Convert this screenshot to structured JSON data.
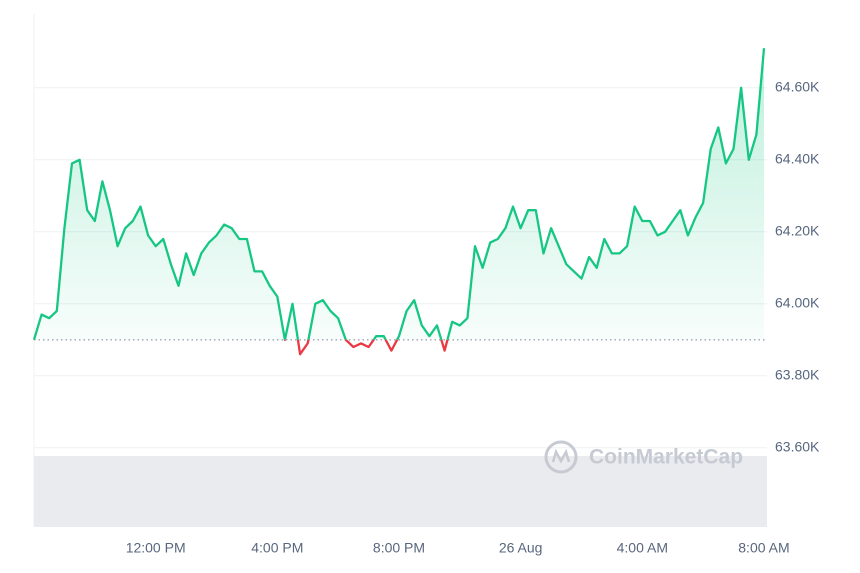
{
  "chart_data": {
    "type": "line",
    "watermark": "CoinMarketCap",
    "x": [
      8,
      8.25,
      8.5,
      8.75,
      9,
      9.25,
      9.5,
      9.75,
      10,
      10.25,
      10.5,
      10.75,
      11,
      11.25,
      11.5,
      11.75,
      12,
      12.25,
      12.5,
      12.75,
      13,
      13.25,
      13.5,
      13.75,
      14,
      14.25,
      14.5,
      14.75,
      15,
      15.25,
      15.5,
      15.75,
      16,
      16.25,
      16.5,
      16.75,
      17,
      17.25,
      17.5,
      17.75,
      18,
      18.25,
      18.5,
      18.75,
      19,
      19.25,
      19.5,
      19.75,
      20,
      20.25,
      20.5,
      20.75,
      21,
      21.25,
      21.5,
      21.75,
      22,
      22.25,
      22.5,
      22.75,
      23,
      23.25,
      23.5,
      23.75,
      24,
      24.25,
      24.5,
      24.75,
      25,
      25.25,
      25.5,
      25.75,
      26,
      26.25,
      26.5,
      26.75,
      27,
      27.25,
      27.5,
      27.75,
      28,
      28.25,
      28.5,
      28.75,
      29,
      29.25,
      29.5,
      29.75,
      30,
      30.25,
      30.5,
      30.75,
      31,
      31.25,
      31.5,
      31.75,
      32
    ],
    "series": [
      {
        "color": "#16c784",
        "below_color": "#ea3943",
        "values": [
          63900,
          63970,
          63960,
          63980,
          64210,
          64390,
          64400,
          64260,
          64230,
          64340,
          64260,
          64160,
          64210,
          64230,
          64270,
          64190,
          64160,
          64180,
          64110,
          64050,
          64140,
          64080,
          64140,
          64170,
          64190,
          64220,
          64210,
          64180,
          64180,
          64090,
          64090,
          64050,
          64020,
          63900,
          64000,
          63860,
          63890,
          64000,
          64010,
          63980,
          63960,
          63900,
          63880,
          63890,
          63880,
          63910,
          63910,
          63870,
          63910,
          63980,
          64010,
          63940,
          63910,
          63940,
          63870,
          63950,
          63940,
          63960,
          64160,
          64100,
          64170,
          64180,
          64210,
          64270,
          64210,
          64260,
          64260,
          64140,
          64210,
          64160,
          64110,
          64090,
          64070,
          64130,
          64100,
          64180,
          64140,
          64140,
          64160,
          64270,
          64230,
          64230,
          64190,
          64200,
          64230,
          64260,
          64190,
          64240,
          64280,
          64430,
          64490,
          64390,
          64430,
          64600,
          64400,
          64470,
          64710
        ]
      }
    ],
    "baseline": 63900,
    "xlim": [
      8,
      32.1
    ],
    "xticks": [
      {
        "value": 12,
        "label": "12:00 PM"
      },
      {
        "value": 16,
        "label": "4:00 PM"
      },
      {
        "value": 20,
        "label": "8:00 PM"
      },
      {
        "value": 24,
        "label": "26 Aug"
      },
      {
        "value": 28,
        "label": "4:00 AM"
      },
      {
        "value": 32,
        "label": "8:00 AM"
      }
    ],
    "ylim": [
      63380,
      64805
    ],
    "yticks": [
      {
        "value": 63600,
        "label": "63.60K"
      },
      {
        "value": 63800,
        "label": "63.80K"
      },
      {
        "value": 64000,
        "label": "64.00K"
      },
      {
        "value": 64200,
        "label": "64.20K"
      },
      {
        "value": 64400,
        "label": "64.40K"
      },
      {
        "value": 64600,
        "label": "64.60K"
      }
    ],
    "grid": true
  }
}
